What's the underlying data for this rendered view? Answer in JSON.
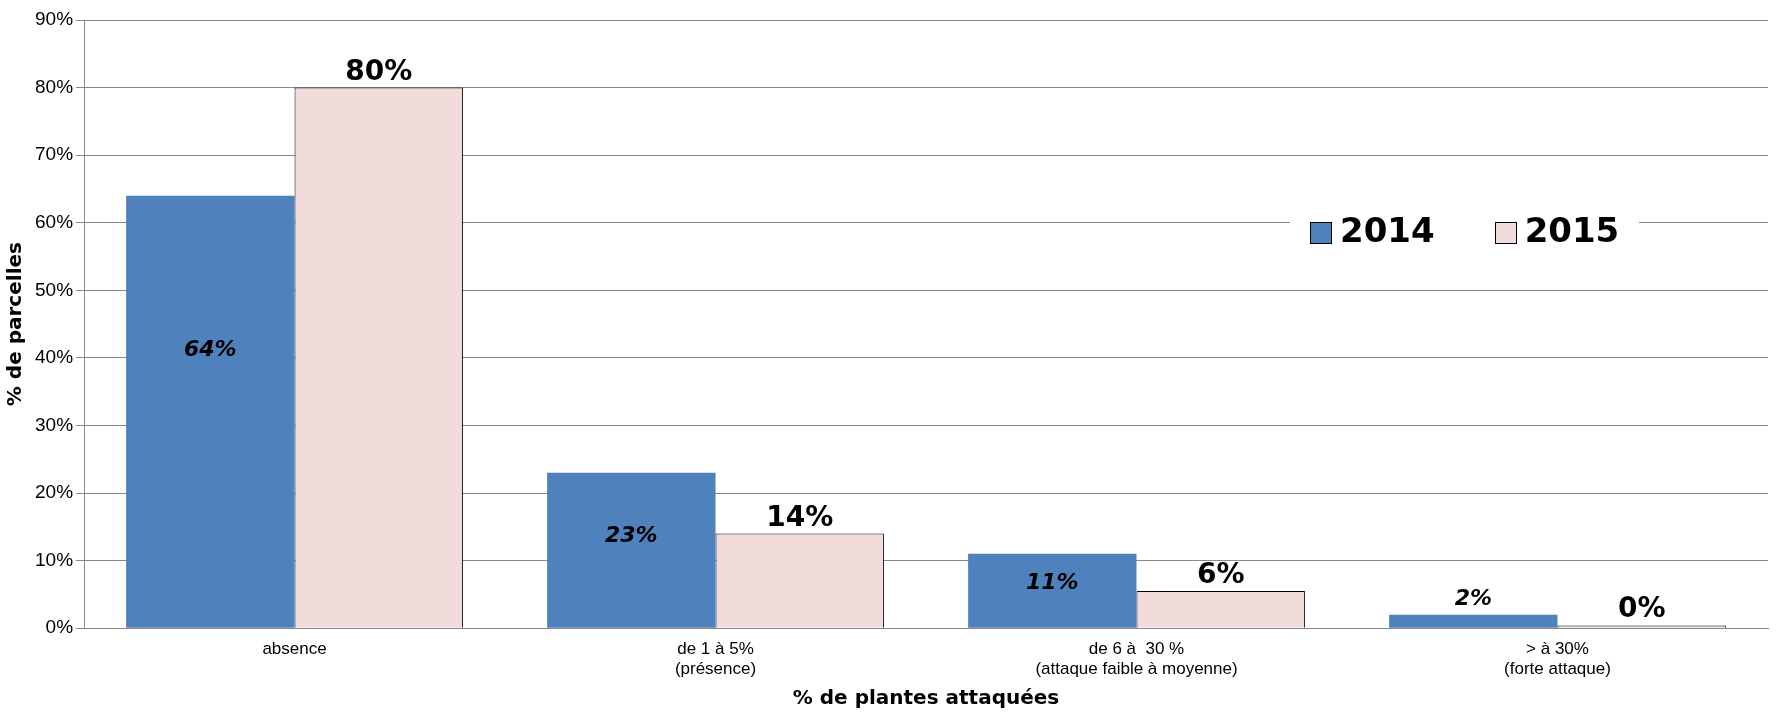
{
  "chart_data": {
    "type": "bar",
    "xlabel": "% de plantes attaquées",
    "ylabel": "% de parcelles",
    "categories": [
      "absence",
      "de 1 à 5%\n(présence)",
      "de 6 à  30 %\n(attaque faible à moyenne)",
      "> à 30%\n(forte attaque)"
    ],
    "series": [
      {
        "name": "2014",
        "color": "#4f81bd",
        "values": [
          64,
          23,
          11,
          2
        ],
        "value_labels": [
          "64%",
          "23%",
          "11%",
          "2%"
        ]
      },
      {
        "name": "2015",
        "color": "#f2dcdb",
        "values": [
          80,
          14,
          5.5,
          0.4
        ],
        "value_labels": [
          "80%",
          "14%",
          "6%",
          "0%"
        ]
      }
    ],
    "ylim": [
      0,
      90
    ],
    "yticks": [
      {
        "value": 0,
        "label": "0%"
      },
      {
        "value": 10,
        "label": "10%"
      },
      {
        "value": 20,
        "label": "20%"
      },
      {
        "value": 30,
        "label": "30%"
      },
      {
        "value": 40,
        "label": "40%"
      },
      {
        "value": 50,
        "label": "50%"
      },
      {
        "value": 60,
        "label": "60%"
      },
      {
        "value": 70,
        "label": "70%"
      },
      {
        "value": 80,
        "label": "80%"
      },
      {
        "value": 90,
        "label": "90%"
      }
    ],
    "grid": "y",
    "legend": "right"
  }
}
